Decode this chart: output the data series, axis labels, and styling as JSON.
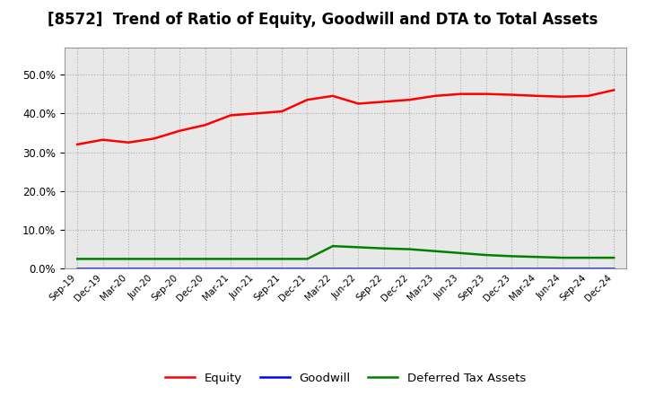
{
  "title": "[8572]  Trend of Ratio of Equity, Goodwill and DTA to Total Assets",
  "x_labels": [
    "Sep-19",
    "Dec-19",
    "Mar-20",
    "Jun-20",
    "Sep-20",
    "Dec-20",
    "Mar-21",
    "Jun-21",
    "Sep-21",
    "Dec-21",
    "Mar-22",
    "Jun-22",
    "Sep-22",
    "Dec-22",
    "Mar-23",
    "Jun-23",
    "Sep-23",
    "Dec-23",
    "Mar-24",
    "Jun-24",
    "Sep-24",
    "Dec-24"
  ],
  "equity": [
    32.0,
    33.2,
    32.5,
    33.5,
    35.5,
    37.0,
    39.5,
    40.0,
    40.5,
    43.5,
    44.5,
    42.5,
    43.0,
    43.5,
    44.5,
    45.0,
    45.0,
    44.8,
    44.5,
    44.3,
    44.5,
    46.0
  ],
  "goodwill": [
    0.1,
    0.1,
    0.1,
    0.1,
    0.1,
    0.1,
    0.1,
    0.1,
    0.1,
    0.1,
    0.1,
    0.1,
    0.1,
    0.1,
    0.1,
    0.1,
    0.1,
    0.1,
    0.1,
    0.1,
    0.1,
    0.1
  ],
  "dta": [
    2.5,
    2.5,
    2.5,
    2.5,
    2.5,
    2.5,
    2.5,
    2.5,
    2.5,
    2.5,
    5.8,
    5.5,
    5.2,
    5.0,
    4.5,
    4.0,
    3.5,
    3.2,
    3.0,
    2.8,
    2.8,
    2.8
  ],
  "equity_color": "#ff0000",
  "goodwill_color": "#0000ff",
  "dta_color": "#008000",
  "ylim": [
    0,
    57
  ],
  "yticks": [
    0.0,
    10.0,
    20.0,
    30.0,
    40.0,
    50.0
  ],
  "background_color": "#ffffff",
  "plot_bg_color": "#e8e8e8",
  "grid_color": "#aaaaaa",
  "title_fontsize": 12,
  "legend_labels": [
    "Equity",
    "Goodwill",
    "Deferred Tax Assets"
  ]
}
